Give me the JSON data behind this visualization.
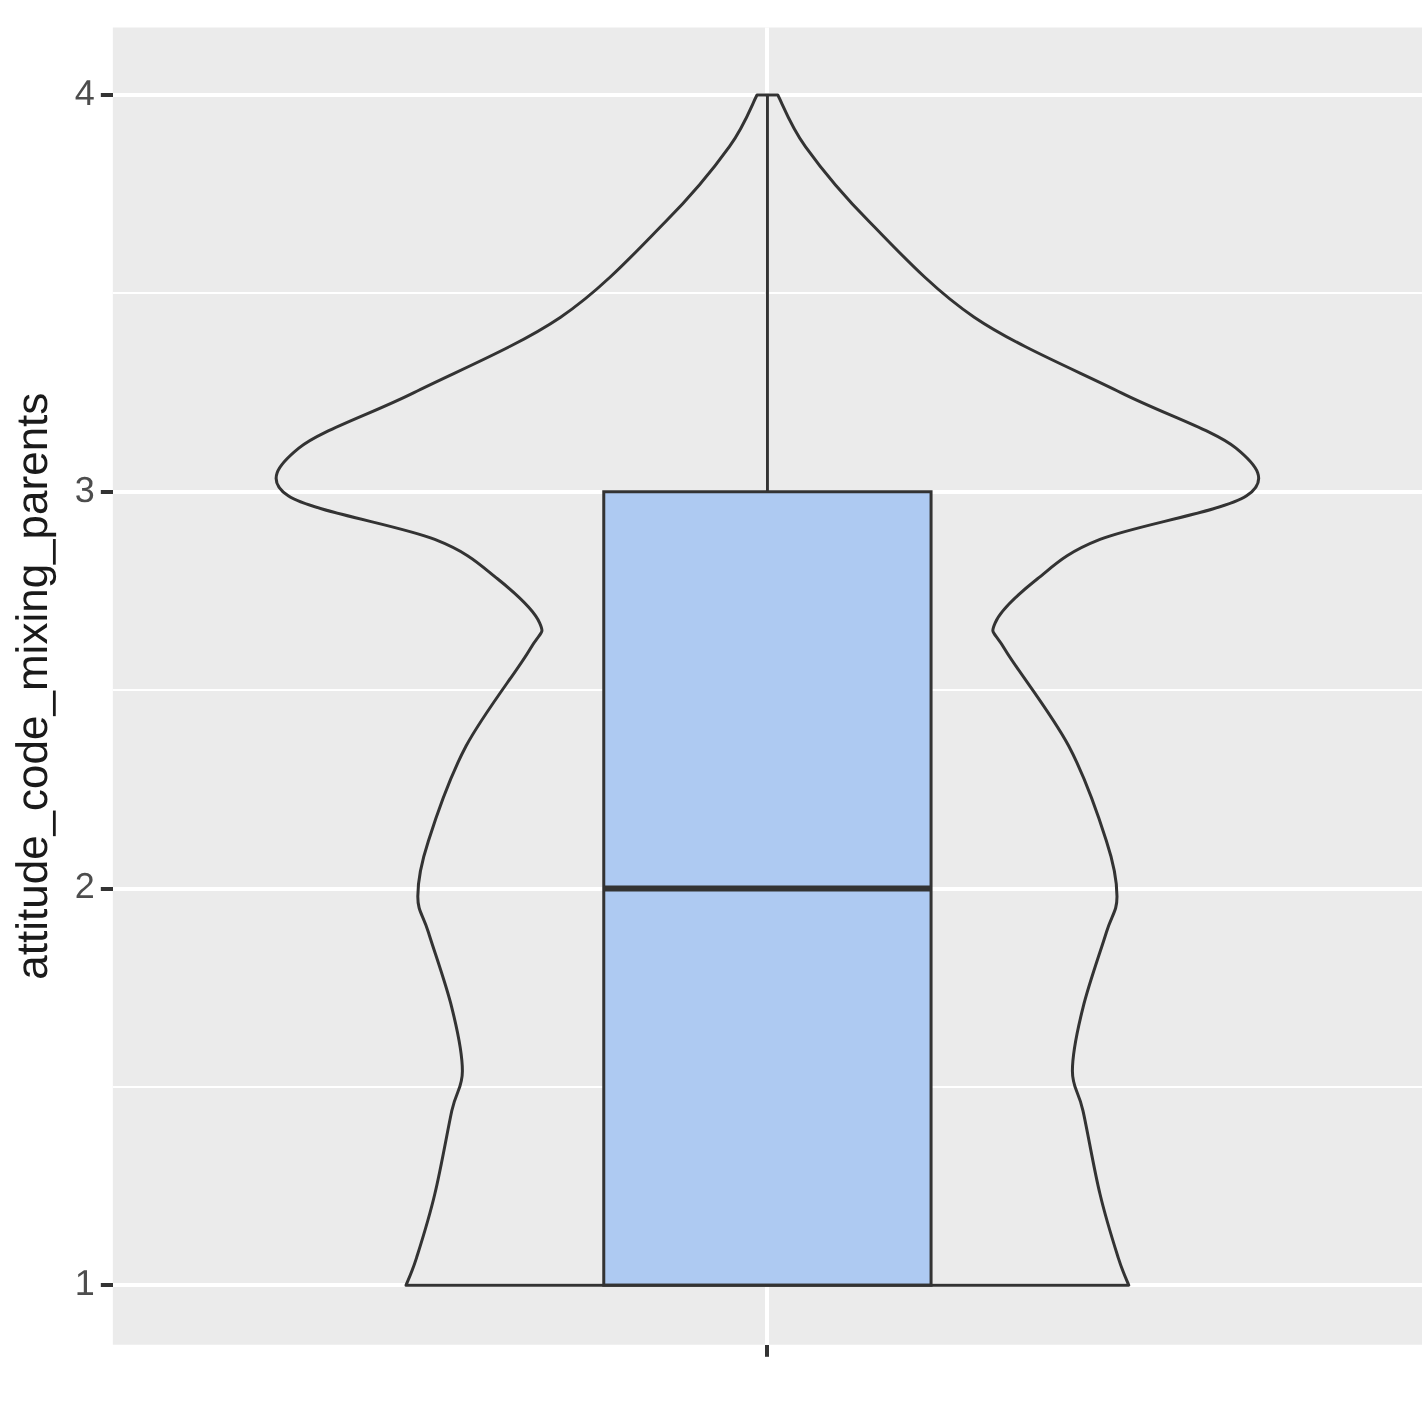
{
  "chart_data": {
    "type": "box",
    "ylabel": "attitude_code_mixing_parents",
    "categories": [
      null
    ],
    "boxes": [
      {
        "low": 1,
        "q1": 1,
        "median": 2,
        "q3": 3,
        "high": 4
      }
    ],
    "color": "#aecaf2",
    "ylim": [
      0.85,
      4.17
    ],
    "yticks": [
      1,
      {
        "value": 1.5,
        "label": null
      },
      2,
      {
        "value": 2.5,
        "label": null
      },
      3,
      {
        "value": 3.5,
        "label": null
      },
      4
    ],
    "grid": true
  }
}
